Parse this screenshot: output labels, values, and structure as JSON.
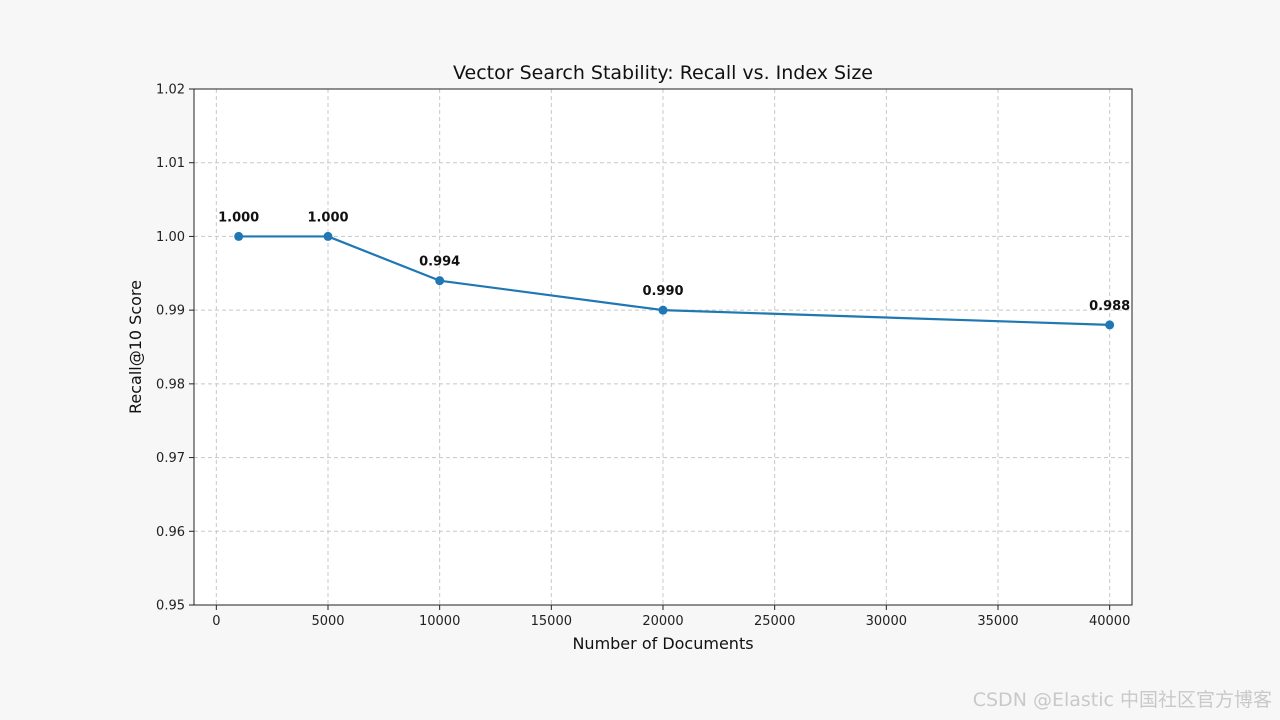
{
  "chart_data": {
    "type": "line",
    "title": "Vector Search Stability: Recall vs. Index Size",
    "xlabel": "Number of Documents",
    "ylabel": "Recall@10 Score",
    "xlim": [
      -1000,
      41000
    ],
    "ylim": [
      0.95,
      1.02
    ],
    "xticks": [
      0,
      5000,
      10000,
      15000,
      20000,
      25000,
      30000,
      35000,
      40000
    ],
    "yticks": [
      0.95,
      0.96,
      0.97,
      0.98,
      0.99,
      1.0,
      1.01,
      1.02
    ],
    "ytick_labels": [
      "0.95",
      "0.96",
      "0.97",
      "0.98",
      "0.99",
      "1.00",
      "1.01",
      "1.02"
    ],
    "grid": true,
    "grid_style": "dashed",
    "series": [
      {
        "x": [
          1000,
          5000,
          10000,
          20000,
          40000
        ],
        "y": [
          1.0,
          1.0,
          0.994,
          0.99,
          0.988
        ],
        "labels": [
          "1.000",
          "1.000",
          "0.994",
          "0.990",
          "0.988"
        ],
        "color": "#1f77b4",
        "marker": "circle"
      }
    ]
  },
  "watermark": "CSDN @Elastic 中国社区官方博客"
}
